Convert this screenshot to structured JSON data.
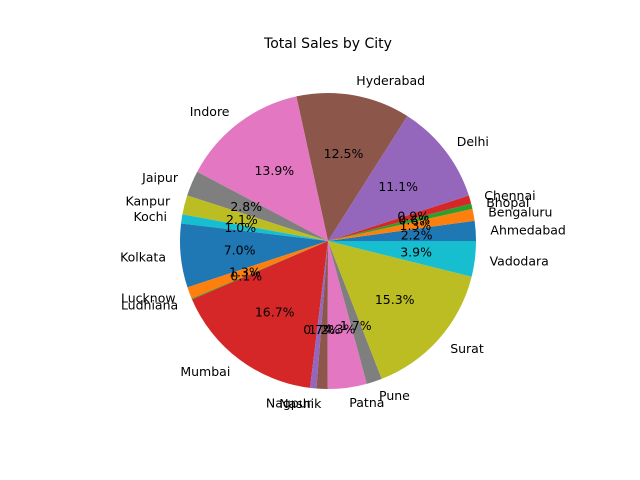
{
  "chart_data": {
    "type": "pie",
    "title": "Total Sales by City",
    "start_angle_deg": 0,
    "direction": "counterclockwise",
    "slices": [
      {
        "label": "Ahmedabad",
        "percent": 2.2,
        "percent_label": "2.2%",
        "color": "#1f77b4"
      },
      {
        "label": "Bengaluru",
        "percent": 1.3,
        "percent_label": "1.3%",
        "color": "#ff7f0e"
      },
      {
        "label": "Bhopal",
        "percent": 0.6,
        "percent_label": "0.6%",
        "color": "#2ca02c"
      },
      {
        "label": "Chennai",
        "percent": 0.9,
        "percent_label": "0.9%",
        "color": "#d62728"
      },
      {
        "label": "Delhi",
        "percent": 11.1,
        "percent_label": "11.1%",
        "color": "#9467bd"
      },
      {
        "label": "Hyderabad",
        "percent": 12.5,
        "percent_label": "12.5%",
        "color": "#8c564b"
      },
      {
        "label": "Indore",
        "percent": 13.9,
        "percent_label": "13.9%",
        "color": "#e377c2"
      },
      {
        "label": "Jaipur",
        "percent": 2.8,
        "percent_label": "2.8%",
        "color": "#7f7f7f"
      },
      {
        "label": "Kanpur",
        "percent": 2.1,
        "percent_label": "2.1%",
        "color": "#bcbd22"
      },
      {
        "label": "Kochi",
        "percent": 1.0,
        "percent_label": "1.0%",
        "color": "#17becf"
      },
      {
        "label": "Kolkata",
        "percent": 7.0,
        "percent_label": "7.0%",
        "color": "#1f77b4"
      },
      {
        "label": "Lucknow",
        "percent": 1.3,
        "percent_label": "1.3%",
        "color": "#ff7f0e"
      },
      {
        "label": "Ludhiana",
        "percent": 0.1,
        "percent_label": "0.1%",
        "color": "#2ca02c"
      },
      {
        "label": "Mumbai",
        "percent": 16.7,
        "percent_label": "16.7%",
        "color": "#d62728"
      },
      {
        "label": "Nagpur",
        "percent": 0.7,
        "percent_label": "0.7%",
        "color": "#9467bd"
      },
      {
        "label": "Nashik",
        "percent": 1.2,
        "percent_label": "1.2%",
        "color": "#8c564b"
      },
      {
        "label": "Patna",
        "percent": 4.3,
        "percent_label": "4.3%",
        "color": "#e377c2"
      },
      {
        "label": "Pune",
        "percent": 1.7,
        "percent_label": "1.7%",
        "color": "#7f7f7f"
      },
      {
        "label": "Surat",
        "percent": 15.3,
        "percent_label": "15.3%",
        "color": "#bcbd22"
      },
      {
        "label": "Vadodara",
        "percent": 3.9,
        "percent_label": "3.9%",
        "color": "#17becf"
      }
    ]
  }
}
